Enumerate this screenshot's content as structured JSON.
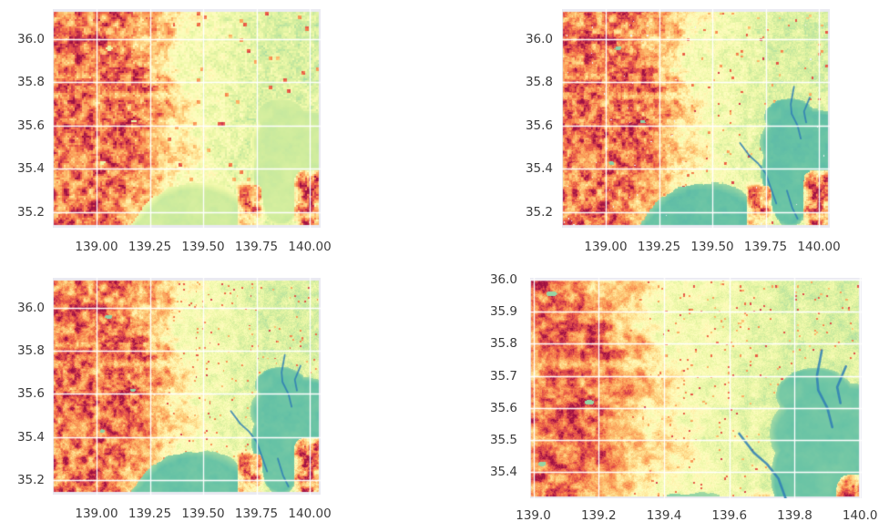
{
  "figure": {
    "type": "2x2 grid of geospatial raster heatmaps (no titles, no colorbars, no legends)",
    "region_depicted": "Kanto plain and Tokyo Bay / Sagami Bay, Japan",
    "background": "#ffffff",
    "axes_background": "#eaeaf2",
    "gridline_color": "#ffffff",
    "tick_label_color": "#3b3b3b",
    "tick_fontsize_px": 13.5,
    "missing_data_color": "#eef0f7",
    "channel_color": "#2f7eb5",
    "palette_note": "Spectral-style colormap: dark red high values (mountains, west), pale yellow plains (east), green-teal water"
  },
  "colormap_stops": [
    [
      0.0,
      "#2e72b0"
    ],
    [
      0.1,
      "#41a0b3"
    ],
    [
      0.2,
      "#66c2a5"
    ],
    [
      0.3,
      "#9bd7a4"
    ],
    [
      0.4,
      "#cfec9d"
    ],
    [
      0.47,
      "#eef8a8"
    ],
    [
      0.54,
      "#fffdc0"
    ],
    [
      0.62,
      "#fee79a"
    ],
    [
      0.7,
      "#fdc271"
    ],
    [
      0.78,
      "#fb9c58"
    ],
    [
      0.86,
      "#ef6645"
    ],
    [
      0.93,
      "#d7404e"
    ],
    [
      1.0,
      "#9e0f42"
    ]
  ],
  "water_channels": [
    [
      [
        139.883,
        35.78
      ],
      [
        139.868,
        35.7
      ],
      [
        139.872,
        35.655
      ],
      [
        139.9,
        35.6
      ],
      [
        139.915,
        35.54
      ]
    ],
    [
      [
        139.957,
        35.73
      ],
      [
        139.93,
        35.665
      ],
      [
        139.94,
        35.615
      ]
    ],
    [
      [
        139.63,
        35.52
      ],
      [
        139.675,
        35.46
      ],
      [
        139.715,
        35.425
      ],
      [
        139.75,
        35.38
      ],
      [
        139.775,
        35.31
      ],
      [
        139.8,
        35.24
      ]
    ],
    [
      [
        139.85,
        35.3
      ],
      [
        139.875,
        35.22
      ],
      [
        139.9,
        35.17
      ]
    ]
  ],
  "chart_data": [
    {
      "id": "top-left",
      "type": "heatmap",
      "position": "top-left",
      "xlim": [
        138.795,
        140.051
      ],
      "ylim": [
        35.128,
        36.139
      ],
      "xticks": {
        "values": [
          139.0,
          139.25,
          139.5,
          139.75,
          140.0
        ],
        "labels": [
          "139.00",
          "139.25",
          "139.50",
          "139.75",
          "140.00"
        ]
      },
      "yticks": {
        "values": [
          36.0,
          35.8,
          35.6,
          35.4,
          35.2
        ],
        "labels": [
          "36.0",
          "35.8",
          "35.6",
          "35.4",
          "35.2"
        ]
      },
      "grid": true,
      "legend": false,
      "water_value": 0.4,
      "resolution_deg": 0.0085,
      "seed": 1,
      "channels": false,
      "channel_width": 0,
      "missing_specks": false
    },
    {
      "id": "top-right",
      "type": "heatmap",
      "position": "top-right",
      "xlim": [
        138.795,
        140.051
      ],
      "ylim": [
        35.128,
        36.139
      ],
      "xticks": {
        "values": [
          139.0,
          139.25,
          139.5,
          139.75,
          140.0
        ],
        "labels": [
          "139.00",
          "139.25",
          "139.50",
          "139.75",
          "140.00"
        ]
      },
      "yticks": {
        "values": [
          36.0,
          35.8,
          35.6,
          35.4,
          35.2
        ],
        "labels": [
          "36.0",
          "35.8",
          "35.6",
          "35.4",
          "35.2"
        ]
      },
      "grid": true,
      "legend": false,
      "water_value": 0.2,
      "resolution_deg": 0.0055,
      "seed": 2,
      "channels": true,
      "channel_width": 1.8,
      "missing_specks": true
    },
    {
      "id": "bottom-left",
      "type": "heatmap",
      "position": "bottom-left",
      "xlim": [
        138.795,
        140.051
      ],
      "ylim": [
        35.132,
        36.138
      ],
      "xticks": {
        "values": [
          139.0,
          139.25,
          139.5,
          139.75,
          140.0
        ],
        "labels": [
          "139.00",
          "139.25",
          "139.50",
          "139.75",
          "140.00"
        ]
      },
      "yticks": {
        "values": [
          36.0,
          35.8,
          35.6,
          35.4,
          35.2
        ],
        "labels": [
          "36.0",
          "35.8",
          "35.6",
          "35.4",
          "35.2"
        ]
      },
      "grid": true,
      "legend": false,
      "water_value": 0.21,
      "resolution_deg": 0.004,
      "seed": 3,
      "channels": true,
      "channel_width": 1.8,
      "missing_specks": false
    },
    {
      "id": "bottom-right",
      "type": "heatmap",
      "position": "bottom-right",
      "xlim": [
        138.99,
        140.005
      ],
      "ylim": [
        35.318,
        36.006
      ],
      "xticks": {
        "values": [
          139.0,
          139.2,
          139.4,
          139.6,
          139.8,
          140.0
        ],
        "labels": [
          "139.0",
          "139.2",
          "139.4",
          "139.6",
          "139.8",
          "140.0"
        ]
      },
      "yticks": {
        "values": [
          36.0,
          35.9,
          35.8,
          35.7,
          35.6,
          35.5,
          35.4
        ],
        "labels": [
          "36.0",
          "35.9",
          "35.8",
          "35.7",
          "35.6",
          "35.5",
          "35.4"
        ]
      },
      "grid": true,
      "legend": false,
      "water_value": 0.22,
      "resolution_deg": 0.003,
      "seed": 4,
      "channels": true,
      "channel_width": 2.6,
      "missing_specks": false
    }
  ]
}
